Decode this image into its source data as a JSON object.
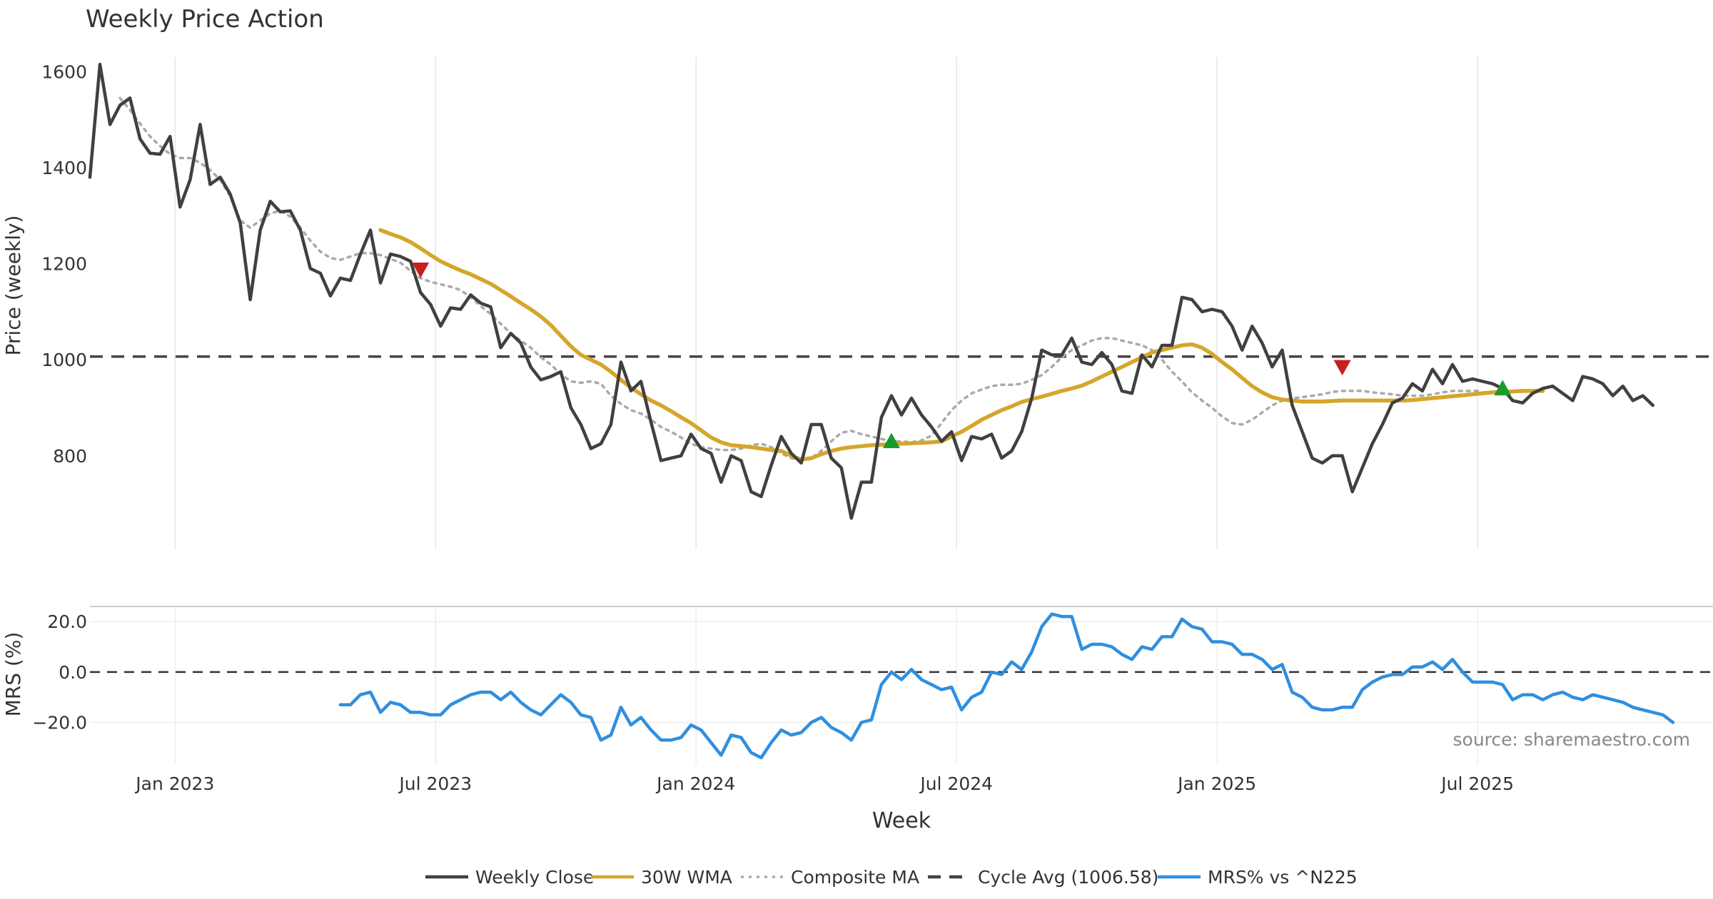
{
  "chart_data": [
    {
      "panel": "price",
      "type": "line",
      "title": "Weekly Price Action",
      "ylabel": "Price (weekly)",
      "ylim": [
        605,
        1660
      ],
      "yticks": [
        "800",
        "1000",
        "1200",
        "1400",
        "1600"
      ],
      "ytick_values": [
        800,
        1000,
        1200,
        1400,
        1600
      ],
      "xlim_weeks": [
        0,
        162
      ],
      "grid": "vertical",
      "cycle_avg": 1006.58,
      "series": [
        {
          "name": "Weekly Close",
          "start_week": 0,
          "values": [
            1380,
            1615,
            1490,
            1530,
            1545,
            1460,
            1430,
            1428,
            1465,
            1318,
            1375,
            1490,
            1365,
            1380,
            1345,
            1285,
            1125,
            1270,
            1330,
            1308,
            1310,
            1270,
            1190,
            1180,
            1133,
            1170,
            1165,
            1220,
            1270,
            1160,
            1220,
            1215,
            1205,
            1140,
            1115,
            1070,
            1108,
            1105,
            1135,
            1118,
            1110,
            1025,
            1055,
            1035,
            985,
            958,
            965,
            975,
            900,
            865,
            815,
            825,
            865,
            995,
            935,
            955,
            870,
            790,
            795,
            800,
            845,
            815,
            805,
            745,
            800,
            790,
            725,
            715,
            780,
            840,
            805,
            785,
            865,
            865,
            795,
            775,
            670,
            745,
            745,
            880,
            925,
            885,
            920,
            885,
            860,
            830,
            850,
            790,
            840,
            835,
            845,
            795,
            810,
            850,
            920,
            1020,
            1010,
            1010,
            1045,
            995,
            990,
            1015,
            990,
            935,
            930,
            1010,
            985,
            1030,
            1030,
            1130,
            1125,
            1100,
            1105,
            1100,
            1070,
            1020,
            1070,
            1035,
            985,
            1020,
            905,
            850,
            795,
            785,
            800,
            800,
            725,
            775,
            825,
            865,
            910,
            920,
            950,
            935,
            980,
            950,
            990,
            955,
            960,
            955,
            950,
            940,
            915,
            910,
            930,
            940,
            945,
            930,
            915,
            965,
            960,
            950,
            925,
            945,
            915,
            925,
            905
          ]
        },
        {
          "name": "30W WMA",
          "start_week": 29,
          "values": [
            1270,
            1262,
            1255,
            1245,
            1232,
            1218,
            1205,
            1195,
            1186,
            1178,
            1168,
            1158,
            1145,
            1132,
            1118,
            1105,
            1090,
            1072,
            1050,
            1028,
            1010,
            1000,
            990,
            975,
            958,
            942,
            928,
            915,
            905,
            893,
            880,
            868,
            853,
            838,
            828,
            822,
            820,
            818,
            815,
            812,
            810,
            800,
            792,
            795,
            803,
            810,
            815,
            818,
            820,
            822,
            823,
            824,
            825,
            826,
            827,
            828,
            830,
            840,
            850,
            862,
            875,
            885,
            895,
            903,
            912,
            918,
            923,
            929,
            935,
            940,
            946,
            955,
            965,
            975,
            985,
            995,
            1005,
            1015,
            1020,
            1025,
            1030,
            1032,
            1025,
            1012,
            995,
            980,
            962,
            945,
            932,
            922,
            917,
            915,
            913,
            913,
            913,
            914,
            915,
            915,
            915,
            915,
            915,
            915,
            915,
            916,
            918,
            920,
            922,
            924,
            926,
            928,
            930,
            932,
            933,
            934,
            935,
            935,
            935
          ]
        },
        {
          "name": "Composite MA",
          "start_week": 3,
          "values": [
            1545,
            1520,
            1492,
            1465,
            1445,
            1428,
            1420,
            1420,
            1410,
            1395,
            1375,
            1340,
            1290,
            1275,
            1290,
            1305,
            1310,
            1298,
            1275,
            1248,
            1225,
            1212,
            1208,
            1215,
            1222,
            1222,
            1218,
            1210,
            1202,
            1185,
            1170,
            1162,
            1157,
            1152,
            1145,
            1130,
            1112,
            1095,
            1075,
            1055,
            1040,
            1025,
            1005,
            990,
            970,
            955,
            952,
            955,
            950,
            925,
            908,
            895,
            888,
            875,
            860,
            850,
            838,
            825,
            818,
            815,
            812,
            812,
            815,
            822,
            825,
            818,
            805,
            795,
            790,
            795,
            810,
            830,
            848,
            852,
            845,
            840,
            835,
            830,
            830,
            828,
            832,
            842,
            868,
            895,
            915,
            930,
            938,
            945,
            948,
            948,
            950,
            958,
            968,
            985,
            1005,
            1020,
            1030,
            1040,
            1045,
            1045,
            1040,
            1035,
            1030,
            1020,
            1000,
            975,
            955,
            932,
            915,
            900,
            882,
            868,
            865,
            875,
            890,
            905,
            915,
            920,
            922,
            925,
            928,
            933,
            935,
            935,
            935,
            932,
            930,
            928,
            925,
            925,
            925,
            928,
            932,
            935,
            935,
            935,
            935
          ]
        }
      ],
      "signals": [
        {
          "type": "sell",
          "week": 33,
          "value": 1188
        },
        {
          "type": "buy",
          "week": 80,
          "value": 830
        },
        {
          "type": "sell",
          "week": 125,
          "value": 985
        },
        {
          "type": "buy",
          "week": 141,
          "value": 940
        }
      ]
    },
    {
      "panel": "mrs",
      "type": "line",
      "ylabel": "MRS (%)",
      "ylim": [
        -34,
        26
      ],
      "yticks": [
        "20.0",
        "0.0",
        "−20.0"
      ],
      "ytick_values": [
        20,
        0,
        -20
      ],
      "series": [
        {
          "name": "MRS% vs ^N225",
          "start_week": 25,
          "values": [
            -13,
            -13,
            -9,
            -8,
            -16,
            -12,
            -13,
            -16,
            -16,
            -17,
            -17,
            -13,
            -11,
            -9,
            -8,
            -8,
            -11,
            -8,
            -12,
            -15,
            -17,
            -13,
            -9,
            -12,
            -17,
            -18,
            -27,
            -25,
            -14,
            -21,
            -18,
            -23,
            -27,
            -27,
            -26,
            -21,
            -23,
            -28,
            -33,
            -25,
            -26,
            -32,
            -34,
            -28,
            -23,
            -25,
            -24,
            -20,
            -18,
            -22,
            -24,
            -27,
            -20,
            -19,
            -5,
            0,
            -3,
            1,
            -3,
            -5,
            -7,
            -6,
            -15,
            -10,
            -8,
            0,
            -1,
            4,
            1,
            8,
            18,
            23,
            22,
            22,
            9,
            11,
            11,
            10,
            7,
            5,
            10,
            9,
            14,
            14,
            21,
            18,
            17,
            12,
            12,
            11,
            7,
            7,
            5,
            1,
            3,
            -8,
            -10,
            -14,
            -15,
            -15,
            -14,
            -14,
            -7,
            -4,
            -2,
            -1,
            -1,
            2,
            2,
            4,
            1,
            5,
            0,
            -4,
            -4,
            -4,
            -5,
            -11,
            -9,
            -9,
            -11,
            -9,
            -8,
            -10,
            -11,
            -9,
            -10,
            -11,
            -12,
            -14,
            -15,
            -16,
            -17,
            -20
          ]
        }
      ],
      "zero_line": 0
    }
  ],
  "x_axis": {
    "label": "Week",
    "ticks": [
      {
        "label": "Jan 2023",
        "week": 8.5
      },
      {
        "label": "Jul 2023",
        "week": 34.5
      },
      {
        "label": "Jan 2024",
        "week": 60.5
      },
      {
        "label": "Jul 2024",
        "week": 86.5
      },
      {
        "label": "Jan 2025",
        "week": 112.5
      },
      {
        "label": "Jul 2025",
        "week": 138.5
      }
    ]
  },
  "legend": {
    "position": "bottom-center",
    "items": [
      {
        "label": "Weekly Close",
        "style": "solid",
        "color": "#404040"
      },
      {
        "label": "30W WMA",
        "style": "solid",
        "color": "#d4a62a"
      },
      {
        "label": "Composite MA",
        "style": "dotted",
        "color": "#aaaaaa"
      },
      {
        "label": "Cycle Avg (1006.58)",
        "style": "dashed",
        "color": "#444444"
      },
      {
        "label": "MRS% vs ^N225",
        "style": "solid",
        "color": "#2f8fe0"
      }
    ]
  },
  "source_note": "source: sharemaestro.com",
  "colors": {
    "close": "#404040",
    "wma": "#d4a62a",
    "composite": "#aaaaaa",
    "cycle": "#444444",
    "mrs": "#2f8fe0",
    "buy": "#1a9a2a",
    "sell": "#c81e1e"
  }
}
